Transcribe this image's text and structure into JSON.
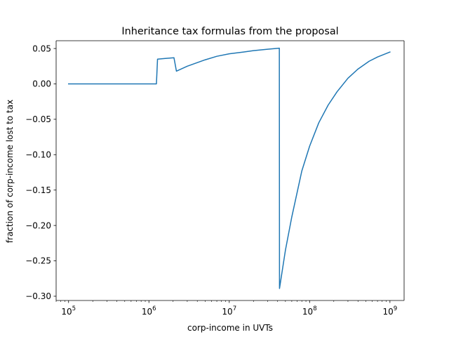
{
  "chart_data": {
    "type": "line",
    "title": "Inheritance tax formulas from the proposal",
    "xlabel": "corp-income in UVTs",
    "ylabel": "fraction of corp-income lost to tax",
    "xscale": "log",
    "xlim": [
      70000,
      1500000000
    ],
    "ylim": [
      -0.306,
      0.061
    ],
    "x_ticks": [
      {
        "value": 100000,
        "base": "10",
        "exp": "5"
      },
      {
        "value": 1000000,
        "base": "10",
        "exp": "6"
      },
      {
        "value": 10000000,
        "base": "10",
        "exp": "7"
      },
      {
        "value": 100000000,
        "base": "10",
        "exp": "8"
      },
      {
        "value": 1000000000,
        "base": "10",
        "exp": "9"
      }
    ],
    "y_ticks": [
      {
        "value": 0.05,
        "label": "0.05"
      },
      {
        "value": 0.0,
        "label": "0.00"
      },
      {
        "value": -0.05,
        "label": "−0.05"
      },
      {
        "value": -0.1,
        "label": "−0.10"
      },
      {
        "value": -0.15,
        "label": "−0.15"
      },
      {
        "value": -0.2,
        "label": "−0.20"
      },
      {
        "value": -0.25,
        "label": "−0.25"
      },
      {
        "value": -0.3,
        "label": "−0.30"
      }
    ],
    "grid": false,
    "line_color": "#1f77b4",
    "series": [
      {
        "points": [
          [
            100000,
            0.0
          ],
          [
            1240000,
            0.0
          ],
          [
            1280000,
            0.035
          ],
          [
            1600000,
            0.036
          ],
          [
            2050000,
            0.037
          ],
          [
            2200000,
            0.018
          ],
          [
            3000000,
            0.025
          ],
          [
            5000000,
            0.034
          ],
          [
            7000000,
            0.039
          ],
          [
            10000000,
            0.0425
          ],
          [
            15000000,
            0.045
          ],
          [
            20000000,
            0.047
          ],
          [
            30000000,
            0.049
          ],
          [
            42000000,
            0.0505
          ],
          [
            42200000,
            -0.289
          ],
          [
            50000000,
            -0.235
          ],
          [
            60000000,
            -0.188
          ],
          [
            80000000,
            -0.123
          ],
          [
            100000000,
            -0.088
          ],
          [
            130000000,
            -0.055
          ],
          [
            170000000,
            -0.03
          ],
          [
            220000000,
            -0.011
          ],
          [
            300000000,
            0.008
          ],
          [
            400000000,
            0.021
          ],
          [
            550000000,
            0.032
          ],
          [
            700000000,
            0.038
          ],
          [
            1000000000,
            0.045
          ]
        ]
      }
    ]
  }
}
